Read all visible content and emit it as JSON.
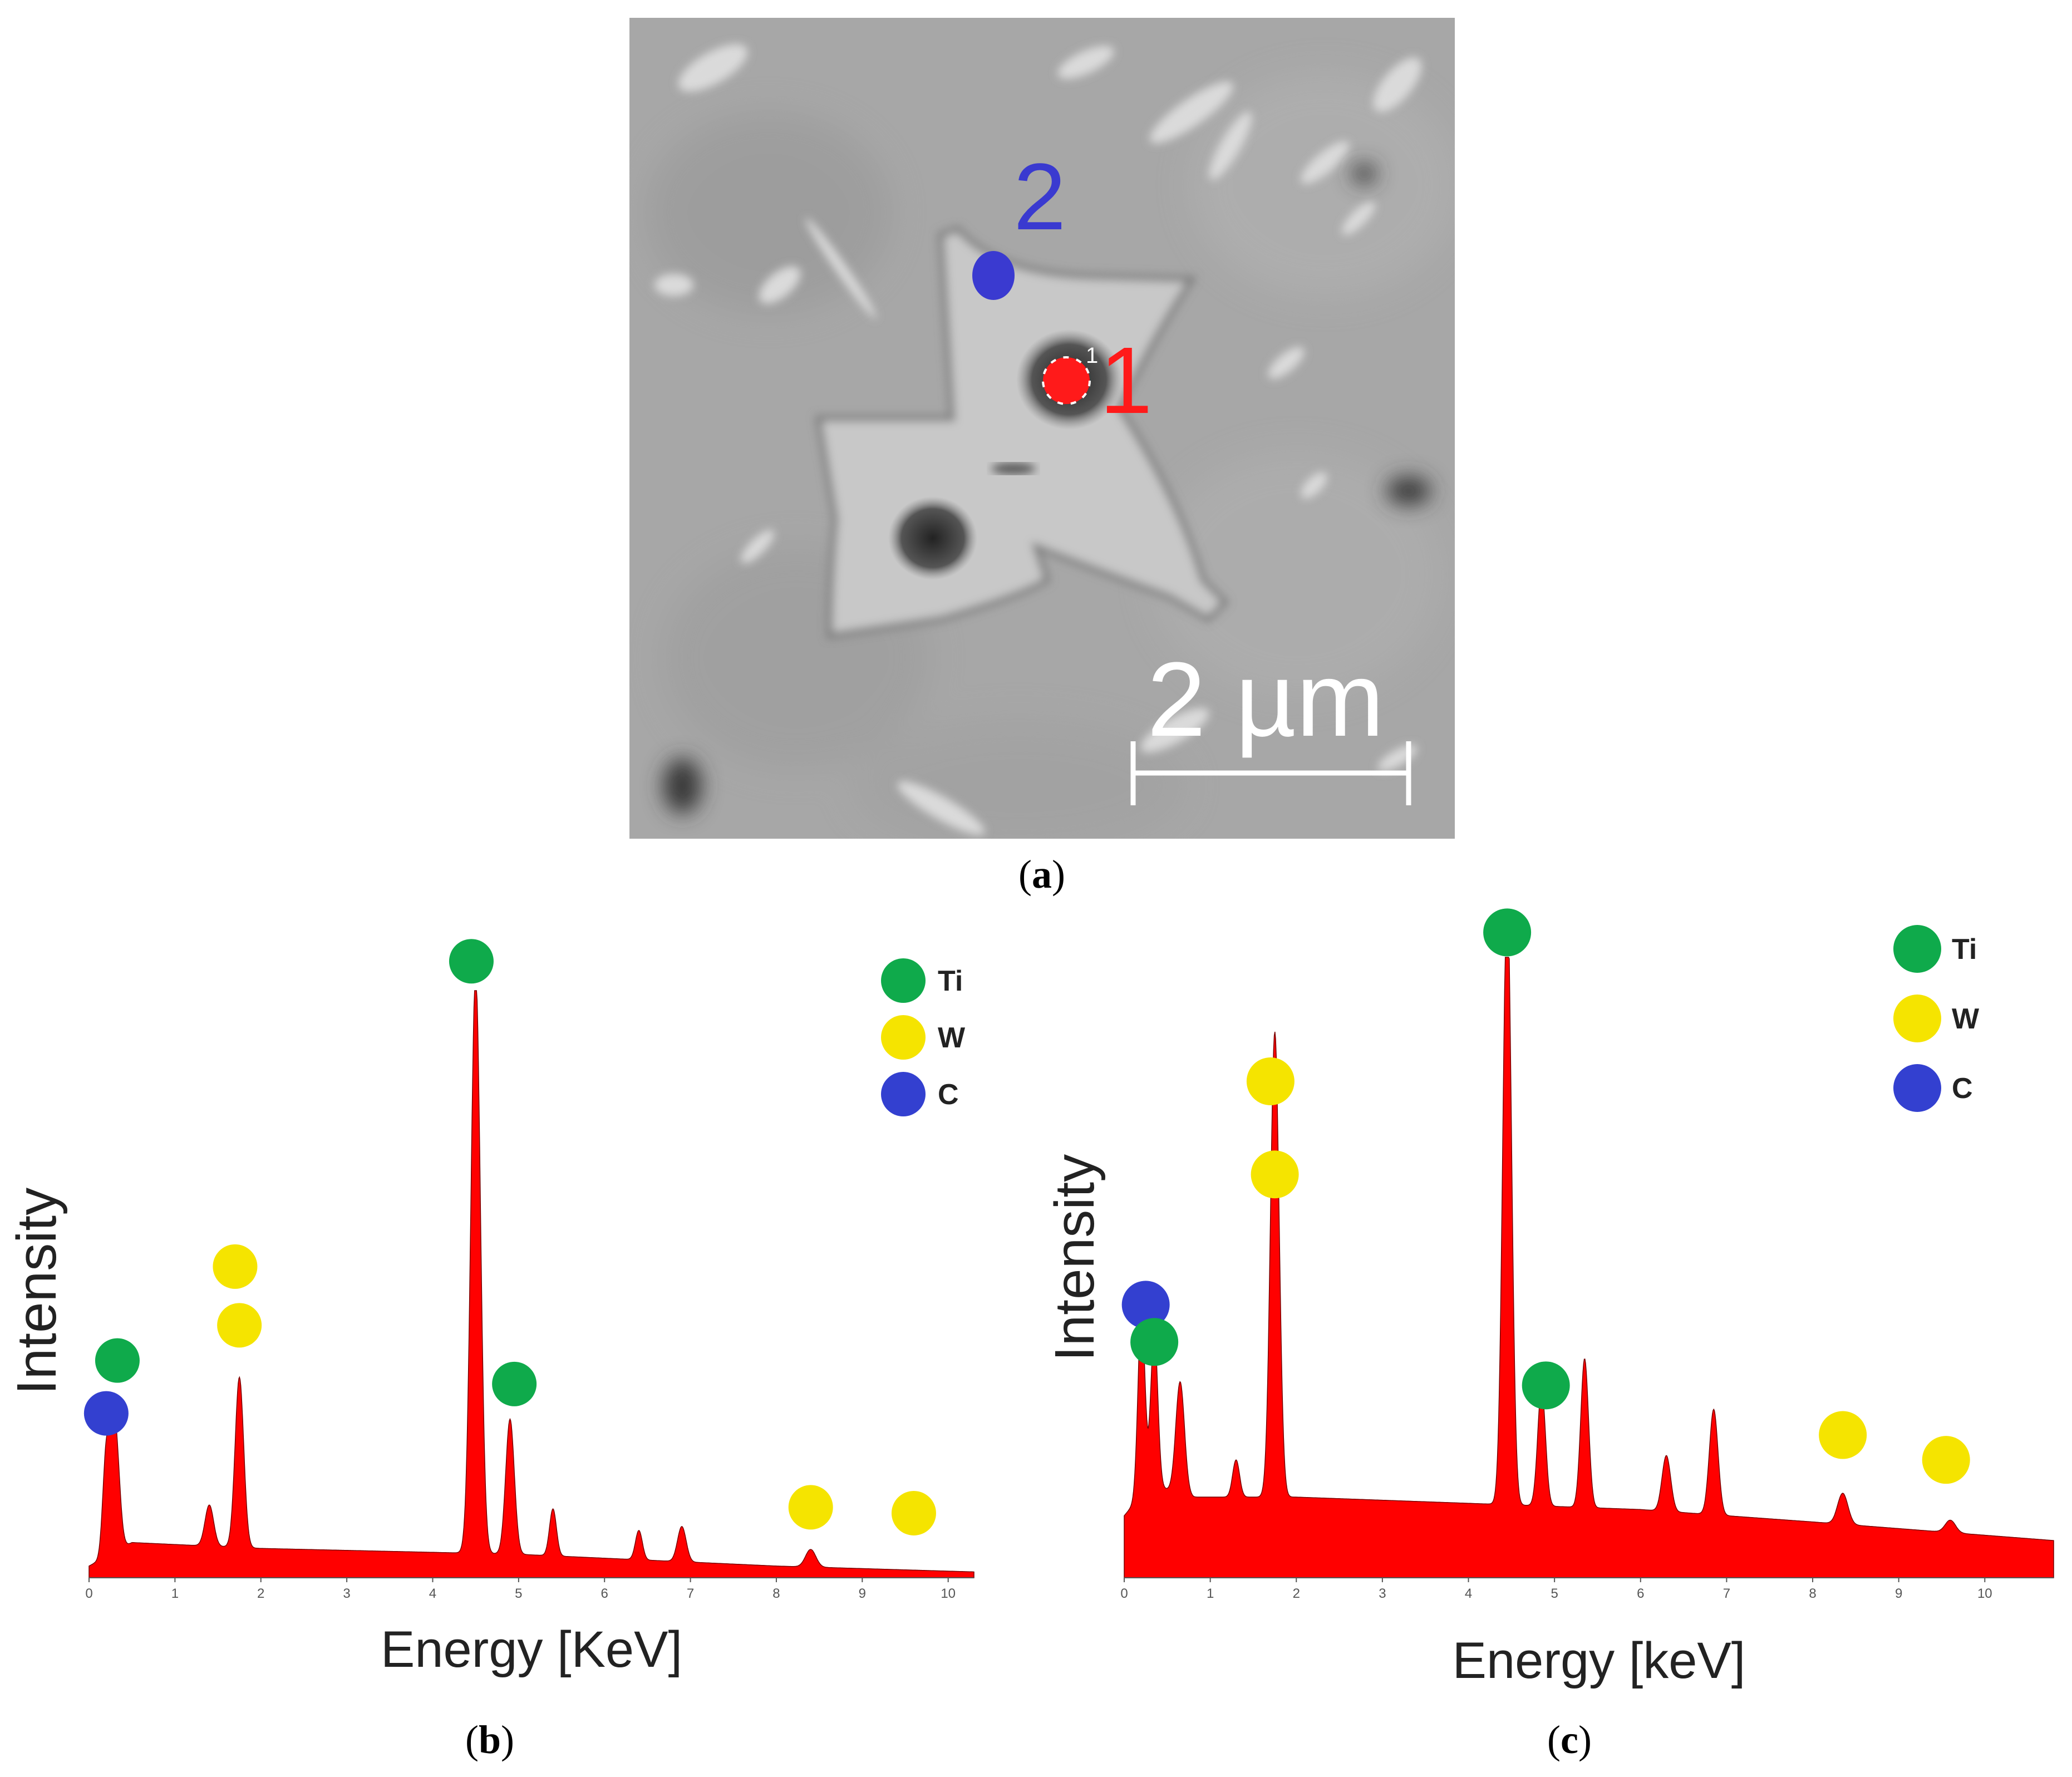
{
  "panel_a": {
    "caption_letter": "a",
    "point_1_label": "1",
    "point_2_label": "2",
    "point_1_small_label": "1",
    "scale_bar_label": "2 µm",
    "colors": {
      "point_1": "#ff1a1a",
      "point_2": "#3a3ad0",
      "background": "#a9a9a9",
      "particle": "#c9c9c9"
    }
  },
  "panel_b": {
    "caption_letter": "b"
  },
  "panel_c": {
    "caption_letter": "c"
  },
  "legend_colors": {
    "Ti": "#0faa4b",
    "W": "#f5e400",
    "C": "#3340d0"
  },
  "chart_data": [
    {
      "id": "b",
      "type": "area",
      "xlabel": "Energy [KeV]",
      "ylabel": "Intensity",
      "xlim": [
        0,
        10.3
      ],
      "x_ticks": [
        0,
        1,
        2,
        3,
        4,
        5,
        6,
        7,
        8,
        9,
        10
      ],
      "fill_color": "#ff0000",
      "baseline": [
        [
          0,
          0.02
        ],
        [
          0.5,
          0.06
        ],
        [
          2,
          0.05
        ],
        [
          5,
          0.04
        ],
        [
          8,
          0.02
        ],
        [
          10.3,
          0.01
        ]
      ],
      "peaks": [
        {
          "x": 0.2,
          "y": 0.17,
          "w": 0.04
        },
        {
          "x": 0.3,
          "y": 0.22,
          "w": 0.05
        },
        {
          "x": 1.4,
          "y": 0.07,
          "w": 0.05
        },
        {
          "x": 1.75,
          "y": 0.29,
          "w": 0.05
        },
        {
          "x": 4.5,
          "y": 0.99,
          "w": 0.055
        },
        {
          "x": 4.9,
          "y": 0.23,
          "w": 0.05
        },
        {
          "x": 5.4,
          "y": 0.08,
          "w": 0.04
        },
        {
          "x": 6.4,
          "y": 0.05,
          "w": 0.04
        },
        {
          "x": 6.9,
          "y": 0.06,
          "w": 0.05
        },
        {
          "x": 8.4,
          "y": 0.03,
          "w": 0.06
        }
      ],
      "markers": [
        {
          "element": "Ti",
          "x": 0.33,
          "y": 0.37
        },
        {
          "element": "C",
          "x": 0.2,
          "y": 0.28
        },
        {
          "element": "W",
          "x": 1.7,
          "y": 0.53
        },
        {
          "element": "W",
          "x": 1.75,
          "y": 0.43
        },
        {
          "element": "Ti",
          "x": 4.45,
          "y": 1.05
        },
        {
          "element": "Ti",
          "x": 4.95,
          "y": 0.33
        },
        {
          "element": "W",
          "x": 8.4,
          "y": 0.12
        },
        {
          "element": "W",
          "x": 9.6,
          "y": 0.11
        }
      ],
      "legend": [
        "Ti",
        "W",
        "C"
      ]
    },
    {
      "id": "c",
      "type": "area",
      "xlabel": "Energy [keV]",
      "ylabel": "Intensity",
      "xlim": [
        0,
        10.8
      ],
      "x_ticks": [
        0,
        1,
        2,
        3,
        4,
        5,
        6,
        7,
        8,
        9,
        10
      ],
      "fill_color": "#ff0000",
      "baseline": [
        [
          0,
          0.1
        ],
        [
          0.3,
          0.15
        ],
        [
          0.8,
          0.13
        ],
        [
          2,
          0.13
        ],
        [
          4,
          0.12
        ],
        [
          6,
          0.11
        ],
        [
          8,
          0.09
        ],
        [
          10.8,
          0.06
        ]
      ],
      "peaks": [
        {
          "x": 0.2,
          "y": 0.3,
          "w": 0.04
        },
        {
          "x": 0.35,
          "y": 0.25,
          "w": 0.04
        },
        {
          "x": 0.65,
          "y": 0.18,
          "w": 0.05
        },
        {
          "x": 1.3,
          "y": 0.06,
          "w": 0.04
        },
        {
          "x": 1.75,
          "y": 0.75,
          "w": 0.05
        },
        {
          "x": 4.45,
          "y": 0.99,
          "w": 0.05
        },
        {
          "x": 4.85,
          "y": 0.19,
          "w": 0.045
        },
        {
          "x": 5.35,
          "y": 0.24,
          "w": 0.045
        },
        {
          "x": 6.3,
          "y": 0.09,
          "w": 0.05
        },
        {
          "x": 6.85,
          "y": 0.17,
          "w": 0.05
        },
        {
          "x": 8.35,
          "y": 0.05,
          "w": 0.06
        },
        {
          "x": 9.6,
          "y": 0.02,
          "w": 0.06
        }
      ],
      "markers": [
        {
          "element": "Ti",
          "x": 4.45,
          "y": 1.04
        },
        {
          "element": "W",
          "x": 1.7,
          "y": 0.8
        },
        {
          "element": "W",
          "x": 1.75,
          "y": 0.65
        },
        {
          "element": "C",
          "x": 0.25,
          "y": 0.44
        },
        {
          "element": "Ti",
          "x": 0.35,
          "y": 0.38
        },
        {
          "element": "Ti",
          "x": 4.9,
          "y": 0.31
        },
        {
          "element": "W",
          "x": 8.35,
          "y": 0.23
        },
        {
          "element": "W",
          "x": 9.55,
          "y": 0.19
        }
      ],
      "legend": [
        "Ti",
        "W",
        "C"
      ]
    }
  ]
}
